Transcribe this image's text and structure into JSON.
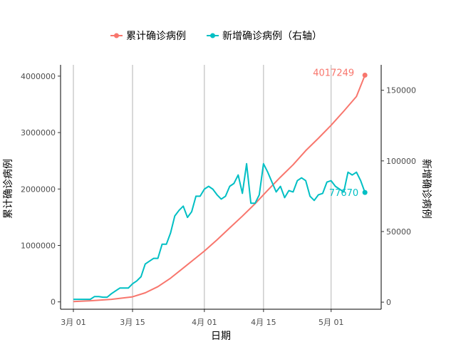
{
  "chart_data": {
    "type": "line",
    "title": "",
    "xlabel": "日期",
    "ylabel_left": "累计确诊病例",
    "ylabel_right": "新增确诊病例",
    "x_ticks": [
      "3月 01",
      "3月 15",
      "4月 01",
      "4月 15",
      "5月 01"
    ],
    "y_left_ticks": [
      "0",
      "1000000",
      "2000000",
      "3000000",
      "4000000"
    ],
    "y_right_ticks": [
      "0",
      "50000",
      "100000",
      "150000"
    ],
    "ylim_left": [
      -130000,
      4200000
    ],
    "ylim_right": [
      -5000,
      168000
    ],
    "grid": "vertical",
    "legend_position": "top",
    "colors": {
      "cumulative": "#F8766D",
      "daily": "#00BFC4",
      "grid": "#b3b3b3"
    },
    "x_start": "2020-03-01",
    "series": [
      {
        "name": "累计确诊病例",
        "axis": "left",
        "x": [
          "2020-03-01",
          "2020-03-05",
          "2020-03-10",
          "2020-03-15",
          "2020-03-18",
          "2020-03-21",
          "2020-03-24",
          "2020-03-27",
          "2020-03-30",
          "2020-04-01",
          "2020-04-04",
          "2020-04-07",
          "2020-04-10",
          "2020-04-13",
          "2020-04-16",
          "2020-04-19",
          "2020-04-22",
          "2020-04-25",
          "2020-04-28",
          "2020-05-01",
          "2020-05-04",
          "2020-05-07",
          "2020-05-09"
        ],
        "values": [
          5000,
          20000,
          45000,
          90000,
          160000,
          270000,
          420000,
          600000,
          780000,
          900000,
          1100000,
          1310000,
          1520000,
          1740000,
          1980000,
          2210000,
          2430000,
          2680000,
          2900000,
          3130000,
          3380000,
          3640000,
          4017249
        ]
      },
      {
        "name": "新增确诊病例（右轴）",
        "axis": "right",
        "x": [
          "2020-03-01",
          "2020-03-02",
          "2020-03-03",
          "2020-03-04",
          "2020-03-05",
          "2020-03-06",
          "2020-03-07",
          "2020-03-08",
          "2020-03-09",
          "2020-03-10",
          "2020-03-11",
          "2020-03-12",
          "2020-03-13",
          "2020-03-14",
          "2020-03-15",
          "2020-03-16",
          "2020-03-17",
          "2020-03-18",
          "2020-03-19",
          "2020-03-20",
          "2020-03-21",
          "2020-03-22",
          "2020-03-23",
          "2020-03-24",
          "2020-03-25",
          "2020-03-26",
          "2020-03-27",
          "2020-03-28",
          "2020-03-29",
          "2020-03-30",
          "2020-03-31",
          "2020-04-01",
          "2020-04-02",
          "2020-04-03",
          "2020-04-04",
          "2020-04-05",
          "2020-04-06",
          "2020-04-07",
          "2020-04-08",
          "2020-04-09",
          "2020-04-10",
          "2020-04-11",
          "2020-04-12",
          "2020-04-13",
          "2020-04-14",
          "2020-04-15",
          "2020-04-16",
          "2020-04-17",
          "2020-04-18",
          "2020-04-19",
          "2020-04-20",
          "2020-04-21",
          "2020-04-22",
          "2020-04-23",
          "2020-04-24",
          "2020-04-25",
          "2020-04-26",
          "2020-04-27",
          "2020-04-28",
          "2020-04-29",
          "2020-04-30",
          "2020-05-01",
          "2020-05-02",
          "2020-05-03",
          "2020-05-04",
          "2020-05-05",
          "2020-05-06",
          "2020-05-07",
          "2020-05-08",
          "2020-05-09"
        ],
        "values": [
          2000,
          2000,
          2000,
          2000,
          2000,
          4000,
          4000,
          3500,
          3500,
          6000,
          8000,
          10000,
          10000,
          10000,
          13000,
          15000,
          18000,
          27000,
          29000,
          31000,
          31000,
          41000,
          41000,
          49000,
          61000,
          65000,
          68000,
          60000,
          64000,
          75000,
          75000,
          80000,
          82000,
          80000,
          76000,
          73000,
          75000,
          82000,
          84000,
          90000,
          77000,
          98000,
          70000,
          70000,
          76000,
          98000,
          92000,
          85000,
          78000,
          82000,
          74000,
          79000,
          78000,
          86000,
          88000,
          86000,
          75000,
          72000,
          76000,
          77000,
          85000,
          86000,
          82000,
          80000,
          78000,
          92000,
          90000,
          92000,
          86000,
          77670
        ]
      }
    ],
    "annotations": [
      {
        "series": "累计确诊病例",
        "label": "4017249"
      },
      {
        "series": "新增确诊病例（右轴）",
        "label": "77670"
      }
    ]
  }
}
